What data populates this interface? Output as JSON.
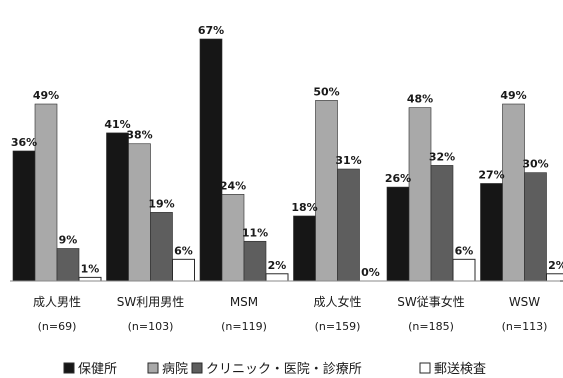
{
  "chart_data": {
    "type": "bar",
    "title": "",
    "xlabel": "",
    "ylabel": "",
    "ylim": [
      0,
      70
    ],
    "grid": false,
    "legend_position": "bottom",
    "categories": [
      {
        "name": "成人男性",
        "n": "(n=69)"
      },
      {
        "name": "SW利用男性",
        "n": "(n=103)"
      },
      {
        "name": "MSM",
        "n": "(n=119)"
      },
      {
        "name": "成人女性",
        "n": "(n=159)"
      },
      {
        "name": "SW従事女性",
        "n": "(n=185)"
      },
      {
        "name": "WSW",
        "n": "(n=113)"
      }
    ],
    "series": [
      {
        "name": "保健所",
        "color": "#161616",
        "values": [
          36,
          41,
          67,
          18,
          26,
          27
        ],
        "labels": [
          "36%",
          "41%",
          "67%",
          "18%",
          "26%",
          "27%"
        ]
      },
      {
        "name": "病院",
        "color": "#a9a9a9",
        "values": [
          49,
          38,
          24,
          50,
          48,
          49
        ],
        "labels": [
          "49%",
          "38%",
          "24%",
          "50%",
          "48%",
          "49%"
        ]
      },
      {
        "name": "クリニック・医院・診療所",
        "color": "#5e5e5e",
        "values": [
          9,
          19,
          11,
          31,
          32,
          30
        ],
        "labels": [
          "9%",
          "19%",
          "11%",
          "31%",
          "32%",
          "30%"
        ]
      },
      {
        "name": "郵送検査",
        "color": "#ffffff",
        "values": [
          1,
          6,
          2,
          0,
          6,
          2
        ],
        "labels": [
          "1%",
          "6%",
          "2%",
          "0%",
          "6%",
          "2%"
        ]
      }
    ]
  }
}
